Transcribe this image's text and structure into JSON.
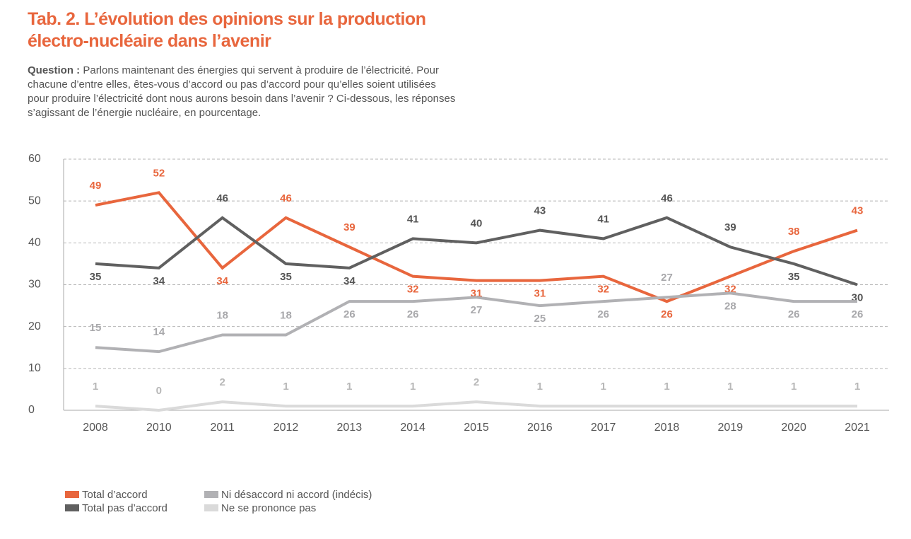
{
  "chart_data": {
    "type": "line",
    "title": "Tab. 2. L’évolution des opinions sur la production électro-nucléaire dans l’avenir",
    "question_label": "Question :",
    "question": "Parlons maintenant des énergies qui servent à produire de l’électricité. Pour chacune d’entre elles, êtes-vous d’accord ou pas d’accord pour qu’elles soient utilisées pour produire l’électricité dont nous aurons besoin dans l’avenir ? Ci-dessous, les réponses s’agissant de l’énergie nucléaire, en pourcentage.",
    "categories": [
      "2008",
      "2010",
      "2011",
      "2012",
      "2013",
      "2014",
      "2015",
      "2016",
      "2017",
      "2018",
      "2019",
      "2020",
      "2021"
    ],
    "ylim": [
      0,
      60
    ],
    "yticks": [
      0,
      10,
      20,
      30,
      40,
      50,
      60
    ],
    "grid": true,
    "series": [
      {
        "name": "Total d’accord",
        "color": "#e8663d",
        "values": [
          49,
          52,
          34,
          46,
          39,
          32,
          31,
          31,
          32,
          26,
          32,
          38,
          43
        ]
      },
      {
        "name": "Total pas d’accord",
        "color": "#606060",
        "values": [
          35,
          34,
          46,
          35,
          34,
          41,
          40,
          43,
          41,
          46,
          39,
          35,
          30
        ]
      },
      {
        "name": "Ni désaccord ni accord (indécis)",
        "color": "#b1b1b4",
        "values": [
          15,
          14,
          18,
          18,
          26,
          26,
          27,
          25,
          26,
          27,
          28,
          26,
          26
        ]
      },
      {
        "name": "Ne se prononce pas",
        "color": "#dadada",
        "values": [
          1,
          0,
          2,
          1,
          1,
          1,
          2,
          1,
          1,
          1,
          1,
          1,
          1
        ]
      }
    ]
  }
}
